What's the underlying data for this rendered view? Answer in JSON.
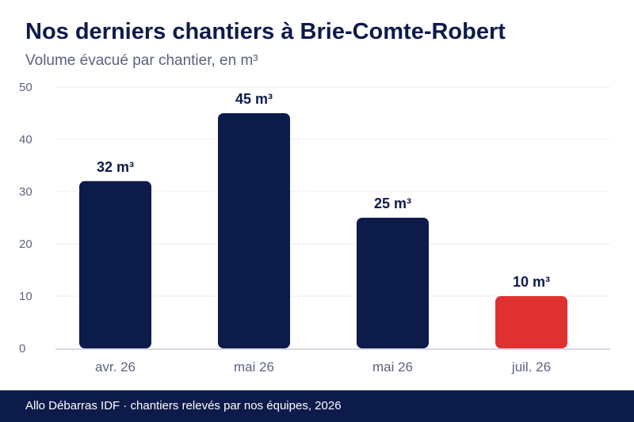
{
  "header": {
    "title": "Nos derniers chantiers à Brie-Comte-Robert",
    "subtitle": "Volume évacué par chantier, en m³"
  },
  "footer": {
    "text": "Allo Débarras IDF · chantiers relevés par nos équipes, 2026"
  },
  "colors": {
    "bar": "#0d1b4b",
    "highlight": "#e03131",
    "grid": "#ececf2",
    "axis": "#c8cbe0",
    "tick": "#5b6280"
  },
  "chart_data": {
    "type": "bar",
    "categories": [
      "avr. 26",
      "mai 26",
      "mai 26",
      "juil. 26"
    ],
    "values": [
      32,
      45,
      25,
      10
    ],
    "data_labels": [
      "32 m³",
      "45 m³",
      "25 m³",
      "10 m³"
    ],
    "highlight_index": 3,
    "ylim": [
      0,
      50
    ],
    "yticks": [
      0,
      10,
      20,
      30,
      40,
      50
    ],
    "grid": true,
    "legend": "none"
  }
}
